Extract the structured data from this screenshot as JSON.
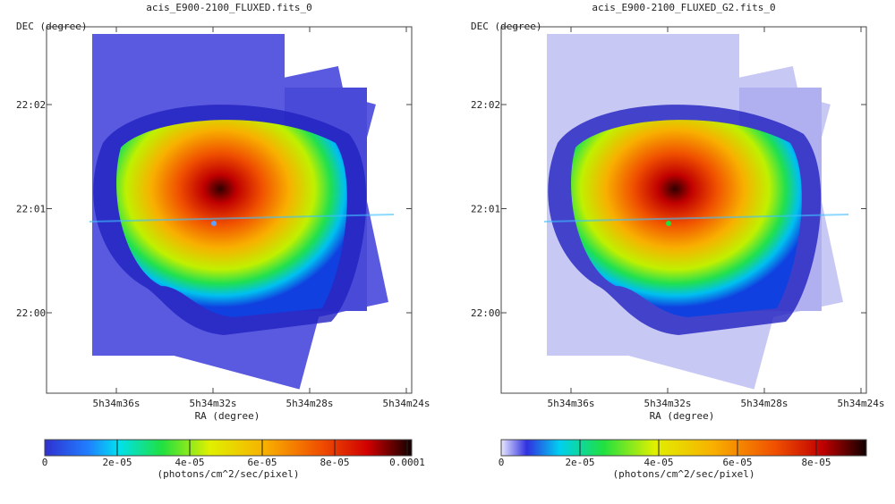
{
  "panels": [
    {
      "title": "acis_E900-2100_FLUXED.fits_0",
      "ylabel": "DEC (degree)",
      "xlabel": "RA (degree)",
      "yticks": [
        "22:02",
        "22:01",
        "22:00"
      ],
      "xticks": [
        "5h34m36s",
        "5h34m32s",
        "5h34m28s",
        "5h34m24s"
      ],
      "colorbar": {
        "ticks": [
          "0",
          "2e-05",
          "4e-05",
          "6e-05",
          "8e-05",
          "0.0001"
        ],
        "label": "(photons/cm^2/sec/pixel)"
      }
    },
    {
      "title": "acis_E900-2100_FLUXED_G2.fits_0",
      "ylabel": "DEC (degree)",
      "xlabel": "RA (degree)",
      "yticks": [
        "22:02",
        "22:01",
        "22:00"
      ],
      "xticks": [
        "5h34m36s",
        "5h34m32s",
        "5h34m28s",
        "5h34m24s"
      ],
      "colorbar": {
        "ticks": [
          "0",
          "2e-05",
          "4e-05",
          "6e-05",
          "8e-05"
        ],
        "label": "(photons/cm^2/sec/pixel)"
      }
    }
  ]
}
